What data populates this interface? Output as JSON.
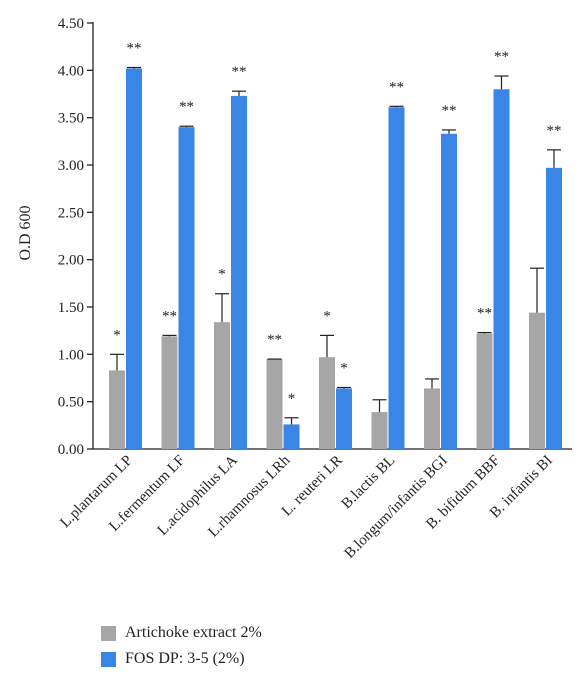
{
  "chart_data": {
    "type": "bar",
    "title": "",
    "xlabel": "",
    "ylabel": "O.D 600",
    "ylim": [
      0,
      4.5
    ],
    "yticks": [
      "0.00",
      "0.50",
      "1.00",
      "1.50",
      "2.00",
      "2.50",
      "3.00",
      "3.50",
      "4.00",
      "4.50"
    ],
    "grid": false,
    "legend_position": "bottom-left",
    "categories": [
      "L.plantarum LP",
      "L.fermentum LF",
      "L.acidophilus LA",
      "L.rhamnosus LRh",
      "L. reuteri LR",
      "B.lactis BL",
      "B.longum/infantis BGI",
      "B. bifidum BBF",
      "B. infantis BI"
    ],
    "series": [
      {
        "name": "Artichoke extract 2%",
        "color": "#a6a6a6",
        "values": [
          0.83,
          1.19,
          1.34,
          0.95,
          0.97,
          0.39,
          0.64,
          1.22,
          1.44
        ],
        "errors": [
          0.17,
          0.01,
          0.3,
          0.0,
          0.23,
          0.13,
          0.1,
          0.01,
          0.47
        ],
        "significance": [
          "*",
          "**",
          "*",
          "**",
          "*",
          "",
          "",
          "**",
          ""
        ]
      },
      {
        "name": "FOS DP: 3-5 (2%)",
        "color": "#3a86e6",
        "values": [
          4.02,
          3.4,
          3.73,
          0.26,
          0.64,
          3.61,
          3.33,
          3.8,
          2.97
        ],
        "errors": [
          0.01,
          0.01,
          0.05,
          0.07,
          0.01,
          0.01,
          0.04,
          0.14,
          0.19
        ],
        "significance": [
          "**",
          "**",
          "**",
          "*",
          "*",
          "**",
          "**",
          "**",
          "**"
        ]
      }
    ]
  }
}
